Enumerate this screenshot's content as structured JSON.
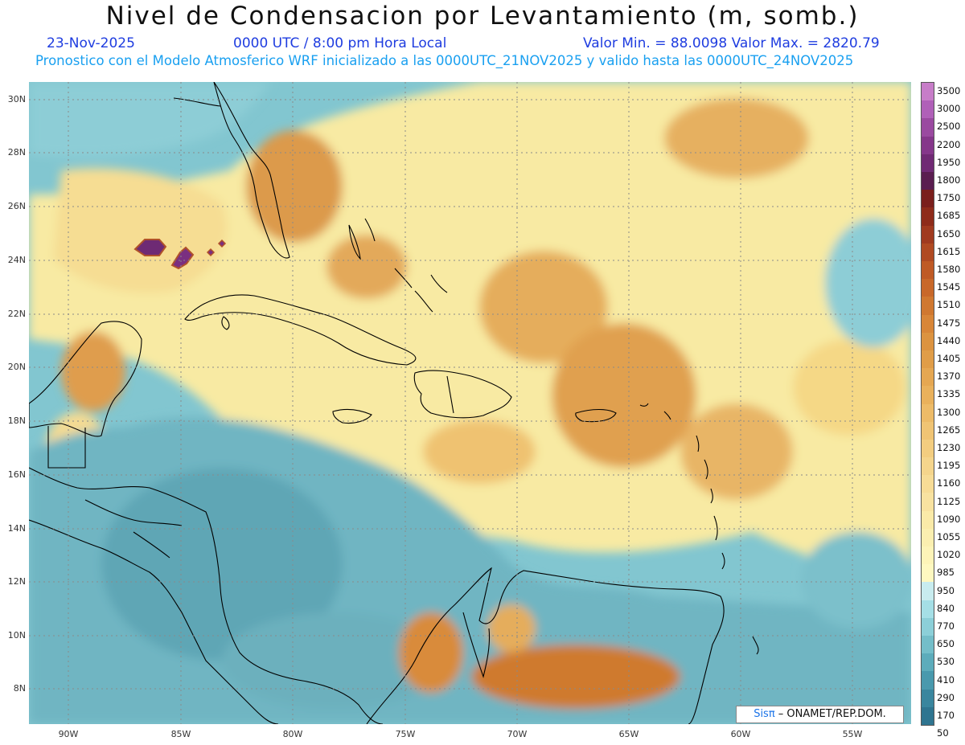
{
  "header": {
    "title": "Nivel de Condensacion por Levantamiento (m, somb.)",
    "date": "23-Nov-2025",
    "time": "0000 UTC / 8:00 pm Hora Local",
    "minmax": "Valor Min. = 88.0098   Valor Max. = 2820.79",
    "forecast": "Pronostico con el Modelo Atmosferico WRF inicializado a las 0000UTC_21NOV2025 y valido hasta las  0000UTC_24NOV2025"
  },
  "map": {
    "lat_labels": [
      "30N",
      "28N",
      "26N",
      "24N",
      "22N",
      "20N",
      "18N",
      "16N",
      "14N",
      "12N",
      "10N",
      "8N"
    ],
    "lon_labels": [
      "90W",
      "85W",
      "80W",
      "75W",
      "70W",
      "65W",
      "60W",
      "55W"
    ]
  },
  "colorbar": {
    "labels": [
      "3500",
      "3000",
      "2500",
      "2200",
      "1950",
      "1800",
      "1750",
      "1685",
      "1650",
      "1615",
      "1580",
      "1545",
      "1510",
      "1475",
      "1440",
      "1405",
      "1370",
      "1335",
      "1300",
      "1265",
      "1230",
      "1195",
      "1160",
      "1125",
      "1090",
      "1055",
      "1020",
      "985",
      "950",
      "840",
      "770",
      "650",
      "530",
      "410",
      "290",
      "170",
      "50"
    ],
    "colors": [
      "#c77dc8",
      "#b060b8",
      "#9a4aa0",
      "#85378a",
      "#702a74",
      "#5a1e50",
      "#7a1f1c",
      "#8e2b1a",
      "#a03a1f",
      "#b04a22",
      "#bf5a25",
      "#c8682a",
      "#d07830",
      "#d88638",
      "#dc9340",
      "#e09d48",
      "#e5a752",
      "#e9b15c",
      "#edbb68",
      "#f0c474",
      "#f3cd80",
      "#f5d58c",
      "#f7dc96",
      "#f8e2a0",
      "#faeaa8",
      "#fbefb0",
      "#fdf4b8",
      "#fef8c0",
      "#c8ecef",
      "#a5dfe6",
      "#8ccfd8",
      "#74bec9",
      "#5dacbb",
      "#4999ad",
      "#3a869e",
      "#2f7590"
    ]
  },
  "credit": {
    "brand": "Sisπ",
    "text": " – ONAMET/REP.DOM."
  }
}
